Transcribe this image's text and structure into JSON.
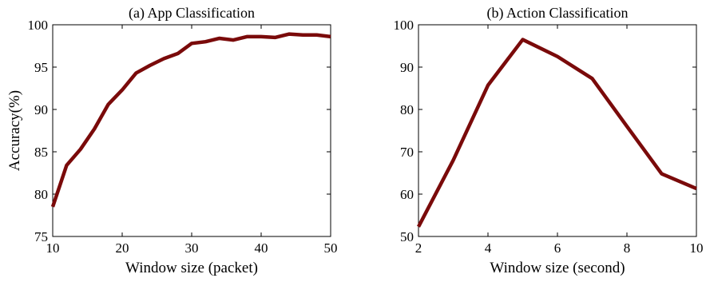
{
  "chart_data": [
    {
      "type": "line",
      "title": "(a) App Classification",
      "xlabel": "Window size (packet)",
      "ylabel": "Accuracy(%)",
      "xlim": [
        10,
        50
      ],
      "ylim": [
        75,
        100
      ],
      "xticks": [
        10,
        20,
        30,
        40,
        50
      ],
      "yticks": [
        75,
        80,
        85,
        90,
        95,
        100
      ],
      "grid": false,
      "line_color": "#7a0a0a",
      "series": [
        {
          "x": [
            10,
            12,
            14,
            16,
            18,
            20,
            22,
            24,
            26,
            28,
            30,
            32,
            34,
            36,
            38,
            40,
            42,
            44,
            46,
            48,
            50
          ],
          "values": [
            78.5,
            83.4,
            85.3,
            87.7,
            90.6,
            92.3,
            94.3,
            95.2,
            96.0,
            96.6,
            97.8,
            98.0,
            98.4,
            98.2,
            98.6,
            98.6,
            98.5,
            98.9,
            98.8,
            98.8,
            98.6
          ]
        }
      ]
    },
    {
      "type": "line",
      "title": "(b) Action Classification",
      "xlabel": "Window size (second)",
      "ylabel": "",
      "xlim": [
        2,
        10
      ],
      "ylim": [
        50,
        100
      ],
      "xticks": [
        2,
        4,
        6,
        8,
        10
      ],
      "yticks": [
        50,
        60,
        70,
        80,
        90,
        100
      ],
      "grid": false,
      "line_color": "#7a0a0a",
      "series": [
        {
          "x": [
            2,
            3,
            4,
            5,
            6,
            7,
            8,
            9,
            10
          ],
          "values": [
            52.3,
            68.0,
            85.7,
            96.5,
            92.5,
            87.3,
            76.0,
            64.8,
            61.3
          ]
        }
      ]
    }
  ]
}
